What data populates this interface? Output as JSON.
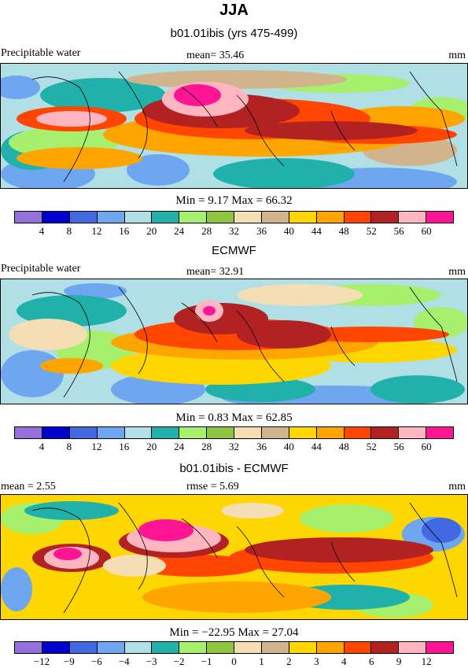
{
  "title": "JJA",
  "palette": [
    "#9370db",
    "#0000cd",
    "#4169e1",
    "#6ea6f0",
    "#b0e0e6",
    "#20b2aa",
    "#a6f06e",
    "#8ec63f",
    "#f5deb3",
    "#d2b48c",
    "#ffd700",
    "#ffa500",
    "#ff4500",
    "#b22222",
    "#ffb6c1",
    "#ff1493"
  ],
  "panels": [
    {
      "title": "b01.01ibis (yrs 475-499)",
      "left_label": "Precipitable water",
      "center_label": "mean=  35.46",
      "right_label": "mm",
      "stats": "Min =   9.17 Max =  66.32",
      "ticks": [
        "4",
        "8",
        "12",
        "16",
        "20",
        "24",
        "28",
        "32",
        "36",
        "40",
        "44",
        "48",
        "52",
        "56",
        "60"
      ]
    },
    {
      "title": "ECMWF",
      "left_label": "Precipitable water",
      "center_label": "mean=  32.91",
      "right_label": "mm",
      "stats": "Min =   0.83 Max =  62.85",
      "ticks": [
        "4",
        "8",
        "12",
        "16",
        "20",
        "24",
        "28",
        "32",
        "36",
        "40",
        "44",
        "48",
        "52",
        "56",
        "60"
      ]
    },
    {
      "title": "b01.01ibis - ECMWF",
      "left_label": "mean =   2.55",
      "center_label": "rmse =   5.69",
      "right_label": "mm",
      "stats": "Min = −22.95 Max =  27.04",
      "ticks": [
        "−12",
        "−9",
        "−6",
        "−4",
        "−3",
        "−2",
        "−1",
        "0",
        "1",
        "2",
        "3",
        "4",
        "6",
        "9",
        "12"
      ]
    }
  ]
}
